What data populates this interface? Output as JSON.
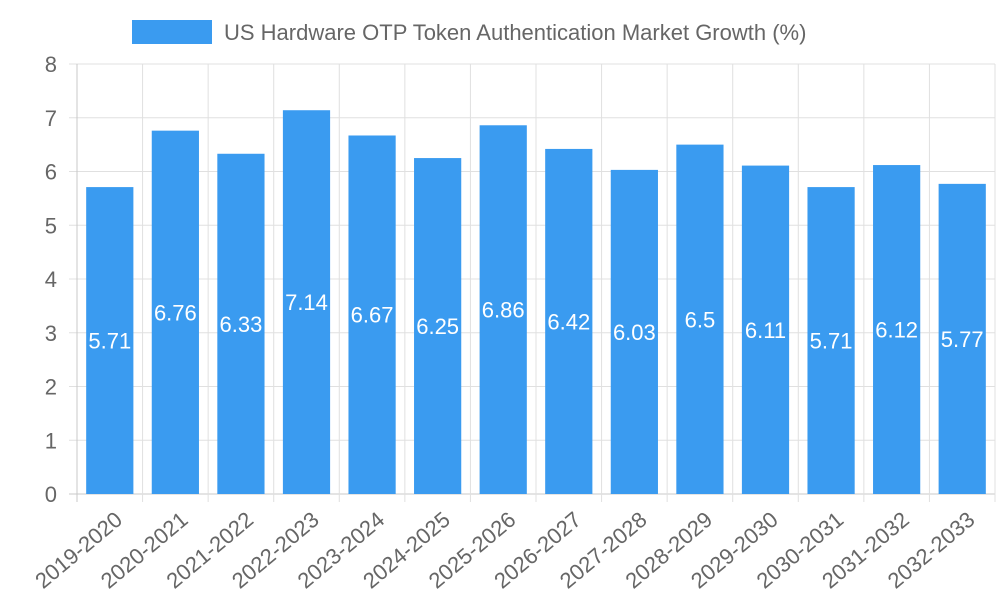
{
  "chart_data": {
    "type": "bar",
    "title": "",
    "categories": [
      "2019-2020",
      "2020-2021",
      "2021-2022",
      "2022-2023",
      "2023-2024",
      "2024-2025",
      "2025-2026",
      "2026-2027",
      "2027-2028",
      "2028-2029",
      "2029-2030",
      "2030-2031",
      "2031-2032",
      "2032-2033"
    ],
    "series": [
      {
        "name": "US Hardware OTP Token Authentication Market Growth (%)",
        "values": [
          5.71,
          6.76,
          6.33,
          7.14,
          6.67,
          6.25,
          6.86,
          6.42,
          6.03,
          6.5,
          6.11,
          5.71,
          6.12,
          5.77
        ],
        "color": "#3a9bf0"
      }
    ],
    "xlabel": "",
    "ylabel": "",
    "ylim": [
      0,
      8
    ],
    "yticks": [
      0,
      1,
      2,
      3,
      4,
      5,
      6,
      7,
      8
    ],
    "grid": true,
    "legend_position": "top-center",
    "data_labels": [
      "5.71",
      "6.76",
      "6.33",
      "7.14",
      "6.67",
      "6.25",
      "6.86",
      "6.42",
      "6.03",
      "6.5",
      "6.11",
      "5.71",
      "6.12",
      "5.77"
    ]
  }
}
